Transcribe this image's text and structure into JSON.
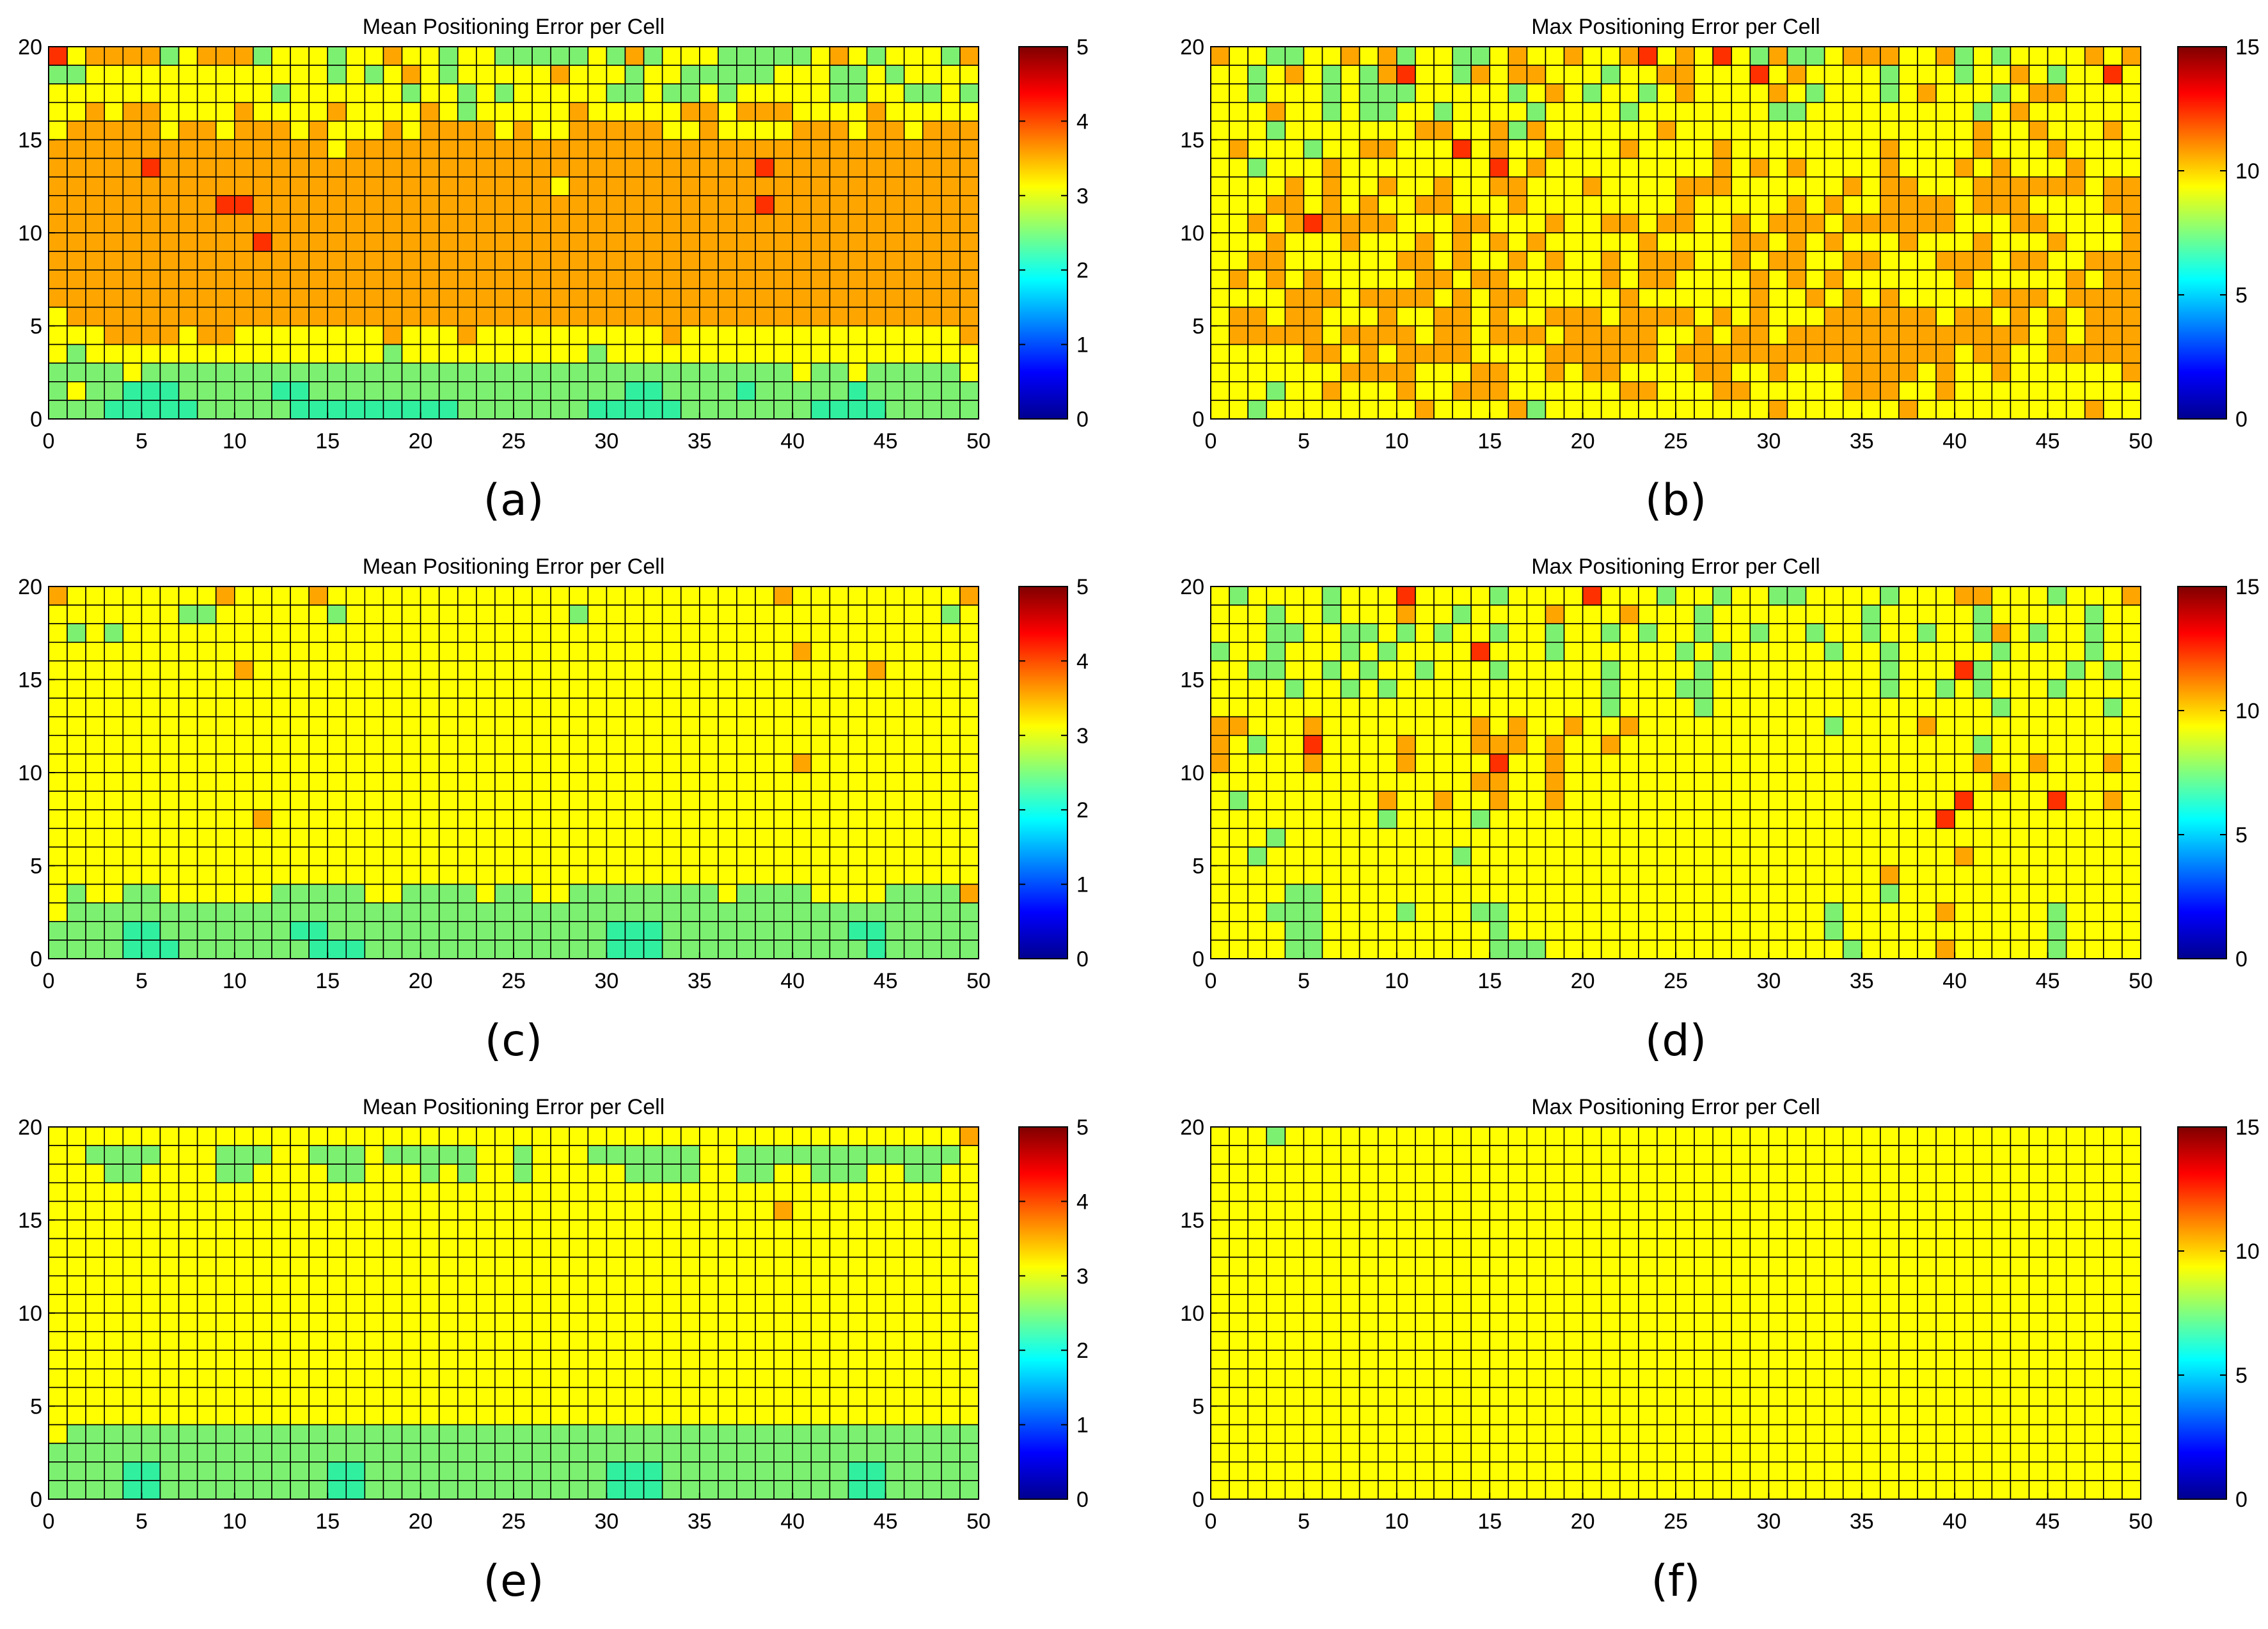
{
  "chart_data": [
    {
      "panel": "a",
      "caption": "(a)",
      "type": "heatmap",
      "title": "Mean Positioning Error per Cell",
      "grid": {
        "cols": 50,
        "rows": 20
      },
      "colormap": "jet",
      "xlim": [
        0,
        50
      ],
      "ylim": [
        0,
        20
      ],
      "xticks": [
        0,
        5,
        10,
        15,
        20,
        25,
        30,
        35,
        40,
        45,
        50
      ],
      "yticks": [
        0,
        5,
        10,
        15,
        20
      ],
      "clim": [
        0,
        5
      ],
      "colorbar_ticks": [
        0,
        1,
        2,
        3,
        4,
        5
      ],
      "rows_top_to_bottom": [
        "75666645666455545565545544444546455544444565455546",
        "44555555555555545456545555565554554444455544545555",
        "55555555555545555554554545555544544545555544554454",
        "55656655556555565555654555556555556656665555655555",
        "56666656656665655565666656556666655655556665665666",
        "66666666666666656666666666666666666666666666666666",
        "66666766666666666666666666666666666666766666666666",
        "66666666666666666666666666656666666666666666666666",
        "66666666677666666666666666666666666666766666666666",
        "66666666666666666666666666666666666666666666666666",
        "66666666666766666666666666666666666666666666666666",
        "66666666666666666666666666666666666666666666666666",
        "66666666666666666666666666666666666666666666666666",
        "66666666666666666666666666666666666666666666666666",
        "56666666666666666666666666666666666666666666666666",
        "55566665665555555565556555555555565555555555555556",
        "54555555555555555545555555555455555555555555555555",
        "44445444444444444444444444444444444444445445444445",
        "45443334444433444444444444444443344443444443444444",
        "44433333444443333333334444444333334444444333344444"
      ]
    },
    {
      "panel": "b",
      "caption": "(b)",
      "type": "heatmap",
      "title": "Max Positioning Error per Cell",
      "grid": {
        "cols": 50,
        "rows": 20
      },
      "colormap": "jet",
      "xlim": [
        0,
        50
      ],
      "ylim": [
        0,
        20
      ],
      "xticks": [
        0,
        5,
        10,
        15,
        20,
        25,
        30,
        35,
        40,
        45,
        50
      ],
      "yticks": [
        0,
        5,
        10,
        15,
        20
      ],
      "clim": [
        0,
        15
      ],
      "colorbar_ticks": [
        0,
        5,
        10,
        15
      ],
      "rows_top_to_bottom": [
        "65544556564554456556556756575464456665564545555656",
        "55456545467554656655545566555756555545554556545575",
        "55455545444555554565455456555565455545655545665555",
        "55565545445545555455554555555544555555555456555555",
        "55545555555665564655555565555555555555555655655565",
        "56555455665557565565556555565555555565555655565555",
        "55455565555555575655555555565656555565556565556555",
        "55556565565565566555655556665555556566555666666566",
        "55566565655665556555555556555556565566665666555566",
        "55656766665556655565566566556566656666665556655556",
        "55565556555656565655555655556656565556555655565556",
        "55665555556656556565565666556566556655566656655666",
        "56565655555665665555565665555656565555556555556566",
        "55556665666656566555556555555655656565555566656666",
        "56656655565566565566656666565655566666656656565666",
        "56666656666566566656666655656656666666666666565666",
        "55555665656666555566666656666666666666665665566666",
        "55555556666555665565665555665565556666565565555556",
        "55545565556556665555556655566555556665565555555555",
        "55455555555655556455555555555565555556555555555655"
      ]
    },
    {
      "panel": "c",
      "caption": "(c)",
      "type": "heatmap",
      "title": "Mean Positioning Error per Cell",
      "grid": {
        "cols": 50,
        "rows": 20
      },
      "colormap": "jet",
      "xlim": [
        0,
        50
      ],
      "ylim": [
        0,
        20
      ],
      "xticks": [
        0,
        5,
        10,
        15,
        20,
        25,
        30,
        35,
        40,
        45,
        50
      ],
      "yticks": [
        0,
        5,
        10,
        15,
        20
      ],
      "clim": [
        0,
        5
      ],
      "colorbar_ticks": [
        0,
        1,
        2,
        3,
        4,
        5
      ],
      "rows_top_to_bottom": [
        "65555555565555655555555555555555555555565555555556",
        "55555554455555545555555555554555555555555555555545",
        "54545555555555555555555555555555555555555555555555",
        "55555555555555555555555555555555555555556555555555",
        "55555555556555555555555555555555555555555555655555",
        "55555555555555555555555555555555555555555555555555",
        "55555555555555555555555555555555555555555555555555",
        "55555555555555555555555555555555555555555555555555",
        "55555555555555555555555555555555555555555555555555",
        "55555555555555555555555555555555555555556555555555",
        "55555555555555555555555555555555555555555555555555",
        "55555555555555555555555555555555555555555555555555",
        "55555555555655555555555555555555555555555555555555",
        "55555555555555555555555555555555555555555555555555",
        "55555555555555555555555555555555555555555555555555",
        "55555555555555555555555555555555555555555555555555",
        "54554455555544444554444544554444444454444555544446",
        "54444444444444444444444444444444444444444444444444",
        "44443344444443344444444444444433344444444443344444",
        "44443334444444333444444444444433344444444444344444"
      ]
    },
    {
      "panel": "d",
      "caption": "(d)",
      "type": "heatmap",
      "title": "Max Positioning Error per Cell",
      "grid": {
        "cols": 50,
        "rows": 20
      },
      "colormap": "jet",
      "xlim": [
        0,
        50
      ],
      "ylim": [
        0,
        20
      ],
      "xticks": [
        0,
        5,
        10,
        15,
        20,
        25,
        30,
        35,
        40,
        45,
        50
      ],
      "yticks": [
        0,
        5,
        10,
        15,
        20
      ],
      "clim": [
        0,
        15
      ],
      "colorbar_ticks": [
        0,
        5,
        10,
        15
      ],
      "rows_top_to_bottom": [
        "54555545557555545555755545545544555545556655545556",
        "55545545556554555565556555455555555455555455555455",
        "55544554454545545545545455455455455455455465455455",
        "45545554545555755545555554545555545545555545555455",
        "55445545455455545555545555455555555545557455554545",
        "55554554545555555555545554455555555545545455545555",
        "55555555555555555555545555455555555555555545555545",
        "66555655555555656556556555555555545555655555555555",
        "65455755556555666565565555555555555555555455555555",
        "65555655556555575565555555555555555555555655655565",
        "55555555555555665565555555555555555555555565555555",
        "54555555565565565565555555555555555555557555575565",
        "55555555545555455555555555555555555555575555555555",
        "55545555555555555555555555555555555555555555555555",
        "55455555555554555555555555555555555555556555555555",
        "55555555555555555555555555555555555565555555555555",
        "55554455555555555555555555555555555545555555555555",
        "55544455554555445555555555555555545555565555545555",
        "55554455555555545555555555555555545555555555545555",
        "55554455555555544455555555555555554555565555545555"
      ]
    },
    {
      "panel": "e",
      "caption": "(e)",
      "type": "heatmap",
      "title": "Mean Positioning Error per Cell",
      "grid": {
        "cols": 50,
        "rows": 20
      },
      "colormap": "jet",
      "xlim": [
        0,
        50
      ],
      "ylim": [
        0,
        20
      ],
      "xticks": [
        0,
        5,
        10,
        15,
        20,
        25,
        30,
        35,
        40,
        45,
        50
      ],
      "yticks": [
        0,
        5,
        10,
        15,
        20
      ],
      "clim": [
        0,
        5
      ],
      "colorbar_ticks": [
        0,
        1,
        2,
        3,
        4,
        5
      ],
      "rows_top_to_bottom": [
        "55555555555555555555555555555555555555555555555556",
        "55444455544455444544444554555444444554444444444445",
        "55544555544555544555454554555554444554455444554455",
        "55555555555555555555555555555555555555555555555555",
        "55555555555555555555555555555555555555565555555555",
        "55555555555555555555555555555555555555555555555555",
        "55555555555555555555555555555555555555555555555555",
        "55555555555555555555555555555555555555555555555555",
        "55555555555555555555555555555555555555555555555555",
        "55555555555555555555555555555555555555555555555555",
        "55555555555555555555555555555555555555555555555555",
        "55555555555555555555555555555555555555555555555555",
        "55555555555555555555555555555555555555555555555555",
        "55555555555555555555555555555555555555555555555555",
        "55555555555555555555555555555555555555555555555555",
        "55555555555555555555555555555555555555555555555555",
        "54444444444444444444444444444444444444444444444444",
        "44444444444444444444444444444444444444444444444444",
        "44443344444444433444444444444433344444444443344444",
        "44443344444444433444444444444433344444444443344444"
      ]
    },
    {
      "panel": "f",
      "caption": "(f)",
      "type": "heatmap",
      "title": "Max Positioning Error per Cell",
      "grid": {
        "cols": 50,
        "rows": 20
      },
      "colormap": "jet",
      "xlim": [
        0,
        50
      ],
      "ylim": [
        0,
        20
      ],
      "xticks": [
        0,
        5,
        10,
        15,
        20,
        25,
        30,
        35,
        40,
        45,
        50
      ],
      "yticks": [
        0,
        5,
        10,
        15,
        20
      ],
      "clim": [
        0,
        15
      ],
      "colorbar_ticks": [
        0,
        5,
        10,
        15
      ],
      "rows_top_to_bottom": [
        "55545555555555555555555555555555555555555555555555",
        "55555555555555555555555555555555555555555555555555",
        "55555555555555555555555555555555555555555555555555",
        "55555555555555555555555555555555555555555555555555",
        "55555555555555555555555555555555555555555555555555",
        "55555555555555555555555555555555555555555555555555",
        "55555555555555555555555555555555555555555555555555",
        "55555555555555555555555555555555555555555555555555",
        "55555555555555555555555555555555555555555555555555",
        "55555555555555555555555555555555555555555555555555",
        "55555555555555555555555555555555555555555555555555",
        "55555555555555555555555555555555555555555555555555",
        "55555555555555555555555555555555555555555555555555",
        "55555555555555555555555555555555555555555555555555",
        "55555555555555555555555555555555555555555555555555",
        "55555555555555555555555555555555555555555555555555",
        "55555555555555555555555555555555555555555555555555",
        "55555555555555555555555555555555555555555555555555",
        "55555555555555555555555555555555555555555555555555",
        "55555555555555555555555555555555555555555555555555"
      ]
    }
  ]
}
